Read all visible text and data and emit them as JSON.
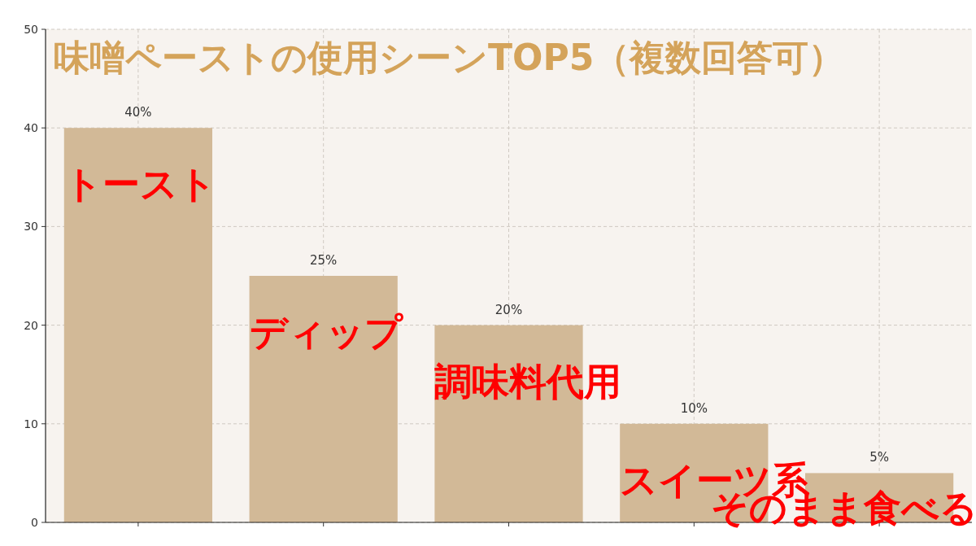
{
  "chart_data": {
    "type": "bar",
    "title": "味噌ペーストの使用シーンTOP5（複数回答可）",
    "categories": [
      "トースト",
      "ディップ",
      "調味料代用",
      "スイーツ系",
      "そのまま食べる"
    ],
    "values": [
      40,
      25,
      20,
      10,
      5
    ],
    "value_labels": [
      "40%",
      "25%",
      "20%",
      "10%",
      "5%"
    ],
    "color": "#d2b997",
    "ylim": [
      0,
      50
    ],
    "yticks": [
      0,
      10,
      20,
      30,
      40,
      50
    ],
    "grid": true
  }
}
